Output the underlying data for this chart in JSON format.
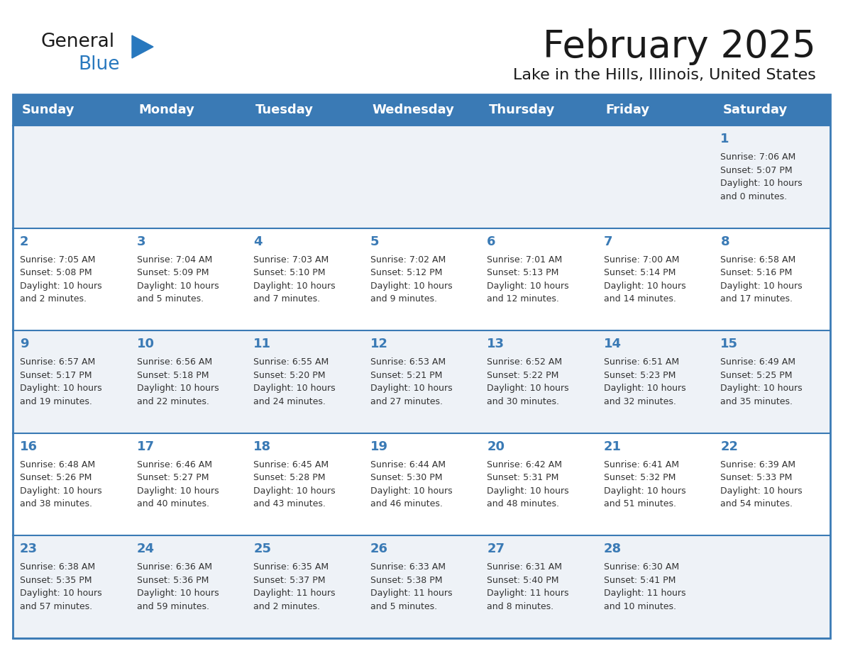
{
  "title": "February 2025",
  "subtitle": "Lake in the Hills, Illinois, United States",
  "header_bg": "#3a7ab5",
  "header_text_color": "#ffffff",
  "row_bg_odd": "#eef2f7",
  "row_bg_even": "#ffffff",
  "day_number_color": "#3a7ab5",
  "cell_text_color": "#333333",
  "border_color": "#3a7ab5",
  "days_of_week": [
    "Sunday",
    "Monday",
    "Tuesday",
    "Wednesday",
    "Thursday",
    "Friday",
    "Saturday"
  ],
  "weeks": [
    [
      {
        "day": null,
        "info": null
      },
      {
        "day": null,
        "info": null
      },
      {
        "day": null,
        "info": null
      },
      {
        "day": null,
        "info": null
      },
      {
        "day": null,
        "info": null
      },
      {
        "day": null,
        "info": null
      },
      {
        "day": 1,
        "info": "Sunrise: 7:06 AM\nSunset: 5:07 PM\nDaylight: 10 hours\nand 0 minutes."
      }
    ],
    [
      {
        "day": 2,
        "info": "Sunrise: 7:05 AM\nSunset: 5:08 PM\nDaylight: 10 hours\nand 2 minutes."
      },
      {
        "day": 3,
        "info": "Sunrise: 7:04 AM\nSunset: 5:09 PM\nDaylight: 10 hours\nand 5 minutes."
      },
      {
        "day": 4,
        "info": "Sunrise: 7:03 AM\nSunset: 5:10 PM\nDaylight: 10 hours\nand 7 minutes."
      },
      {
        "day": 5,
        "info": "Sunrise: 7:02 AM\nSunset: 5:12 PM\nDaylight: 10 hours\nand 9 minutes."
      },
      {
        "day": 6,
        "info": "Sunrise: 7:01 AM\nSunset: 5:13 PM\nDaylight: 10 hours\nand 12 minutes."
      },
      {
        "day": 7,
        "info": "Sunrise: 7:00 AM\nSunset: 5:14 PM\nDaylight: 10 hours\nand 14 minutes."
      },
      {
        "day": 8,
        "info": "Sunrise: 6:58 AM\nSunset: 5:16 PM\nDaylight: 10 hours\nand 17 minutes."
      }
    ],
    [
      {
        "day": 9,
        "info": "Sunrise: 6:57 AM\nSunset: 5:17 PM\nDaylight: 10 hours\nand 19 minutes."
      },
      {
        "day": 10,
        "info": "Sunrise: 6:56 AM\nSunset: 5:18 PM\nDaylight: 10 hours\nand 22 minutes."
      },
      {
        "day": 11,
        "info": "Sunrise: 6:55 AM\nSunset: 5:20 PM\nDaylight: 10 hours\nand 24 minutes."
      },
      {
        "day": 12,
        "info": "Sunrise: 6:53 AM\nSunset: 5:21 PM\nDaylight: 10 hours\nand 27 minutes."
      },
      {
        "day": 13,
        "info": "Sunrise: 6:52 AM\nSunset: 5:22 PM\nDaylight: 10 hours\nand 30 minutes."
      },
      {
        "day": 14,
        "info": "Sunrise: 6:51 AM\nSunset: 5:23 PM\nDaylight: 10 hours\nand 32 minutes."
      },
      {
        "day": 15,
        "info": "Sunrise: 6:49 AM\nSunset: 5:25 PM\nDaylight: 10 hours\nand 35 minutes."
      }
    ],
    [
      {
        "day": 16,
        "info": "Sunrise: 6:48 AM\nSunset: 5:26 PM\nDaylight: 10 hours\nand 38 minutes."
      },
      {
        "day": 17,
        "info": "Sunrise: 6:46 AM\nSunset: 5:27 PM\nDaylight: 10 hours\nand 40 minutes."
      },
      {
        "day": 18,
        "info": "Sunrise: 6:45 AM\nSunset: 5:28 PM\nDaylight: 10 hours\nand 43 minutes."
      },
      {
        "day": 19,
        "info": "Sunrise: 6:44 AM\nSunset: 5:30 PM\nDaylight: 10 hours\nand 46 minutes."
      },
      {
        "day": 20,
        "info": "Sunrise: 6:42 AM\nSunset: 5:31 PM\nDaylight: 10 hours\nand 48 minutes."
      },
      {
        "day": 21,
        "info": "Sunrise: 6:41 AM\nSunset: 5:32 PM\nDaylight: 10 hours\nand 51 minutes."
      },
      {
        "day": 22,
        "info": "Sunrise: 6:39 AM\nSunset: 5:33 PM\nDaylight: 10 hours\nand 54 minutes."
      }
    ],
    [
      {
        "day": 23,
        "info": "Sunrise: 6:38 AM\nSunset: 5:35 PM\nDaylight: 10 hours\nand 57 minutes."
      },
      {
        "day": 24,
        "info": "Sunrise: 6:36 AM\nSunset: 5:36 PM\nDaylight: 10 hours\nand 59 minutes."
      },
      {
        "day": 25,
        "info": "Sunrise: 6:35 AM\nSunset: 5:37 PM\nDaylight: 11 hours\nand 2 minutes."
      },
      {
        "day": 26,
        "info": "Sunrise: 6:33 AM\nSunset: 5:38 PM\nDaylight: 11 hours\nand 5 minutes."
      },
      {
        "day": 27,
        "info": "Sunrise: 6:31 AM\nSunset: 5:40 PM\nDaylight: 11 hours\nand 8 minutes."
      },
      {
        "day": 28,
        "info": "Sunrise: 6:30 AM\nSunset: 5:41 PM\nDaylight: 11 hours\nand 10 minutes."
      },
      {
        "day": null,
        "info": null
      }
    ]
  ],
  "logo_text1": "General",
  "logo_text2": "Blue",
  "logo_color1": "#1a1a1a",
  "logo_color2": "#2878be",
  "logo_triangle_color": "#2878be",
  "title_fontsize": 38,
  "subtitle_fontsize": 16,
  "header_fontsize": 13,
  "day_num_fontsize": 13,
  "cell_fontsize": 9
}
